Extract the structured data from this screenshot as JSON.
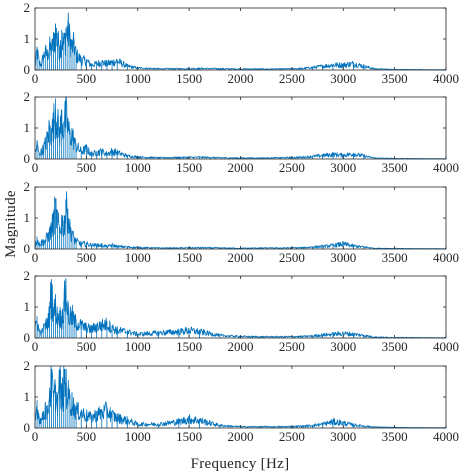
{
  "figure": {
    "xlabel": "Frequency [Hz]",
    "ylabel": "Magnitude"
  },
  "colors": {
    "series": "#0072BD",
    "axes": "#262626",
    "background": "#ffffff"
  },
  "chart_data": [
    {
      "type": "line",
      "xlim": [
        0,
        4000
      ],
      "ylim": [
        0,
        2
      ],
      "xticks": [
        0,
        500,
        1000,
        1500,
        2000,
        2500,
        3000,
        3500,
        4000
      ],
      "yticks": [
        0,
        1,
        2
      ],
      "grid": false,
      "x": [
        0,
        20,
        40,
        60,
        80,
        100,
        120,
        140,
        160,
        180,
        200,
        220,
        240,
        260,
        280,
        300,
        320,
        340,
        360,
        380,
        400,
        450,
        500,
        550,
        600,
        650,
        700,
        750,
        800,
        900,
        1000,
        1200,
        1400,
        1600,
        1800,
        2000,
        2200,
        2400,
        2600,
        2700,
        2800,
        2900,
        3000,
        3100,
        3200,
        3300,
        3500,
        4000
      ],
      "y": [
        0.1,
        0.75,
        0.3,
        0.2,
        0.5,
        0.7,
        0.6,
        0.9,
        0.8,
        1.1,
        1.5,
        1.2,
        0.8,
        1.3,
        1.0,
        1.35,
        1.6,
        1.2,
        0.9,
        1.0,
        0.6,
        0.4,
        0.35,
        0.2,
        0.25,
        0.3,
        0.25,
        0.3,
        0.35,
        0.15,
        0.08,
        0.05,
        0.05,
        0.06,
        0.05,
        0.04,
        0.04,
        0.04,
        0.06,
        0.1,
        0.15,
        0.2,
        0.2,
        0.25,
        0.15,
        0.05,
        0.02,
        0.01
      ]
    },
    {
      "type": "line",
      "xlim": [
        0,
        4000
      ],
      "ylim": [
        0,
        2
      ],
      "xticks": [
        0,
        500,
        1000,
        1500,
        2000,
        2500,
        3000,
        3500,
        4000
      ],
      "yticks": [
        0,
        1,
        2
      ],
      "grid": false,
      "x": [
        0,
        20,
        40,
        60,
        80,
        100,
        120,
        140,
        160,
        180,
        200,
        220,
        240,
        260,
        280,
        300,
        320,
        340,
        360,
        380,
        400,
        450,
        500,
        550,
        600,
        650,
        700,
        750,
        800,
        900,
        1000,
        1200,
        1400,
        1600,
        1800,
        2000,
        2200,
        2400,
        2600,
        2700,
        2800,
        2900,
        3000,
        3100,
        3200,
        3300,
        3500,
        4000
      ],
      "y": [
        0.2,
        0.55,
        0.2,
        0.3,
        0.4,
        0.6,
        0.8,
        1.2,
        1.0,
        1.4,
        1.95,
        1.4,
        1.0,
        1.6,
        1.2,
        1.8,
        1.3,
        0.9,
        1.0,
        0.7,
        0.5,
        0.3,
        0.4,
        0.2,
        0.25,
        0.3,
        0.2,
        0.3,
        0.25,
        0.12,
        0.08,
        0.05,
        0.06,
        0.07,
        0.05,
        0.04,
        0.04,
        0.05,
        0.07,
        0.1,
        0.14,
        0.18,
        0.15,
        0.2,
        0.12,
        0.04,
        0.02,
        0.01
      ]
    },
    {
      "type": "line",
      "xlim": [
        0,
        4000
      ],
      "ylim": [
        0,
        2
      ],
      "xticks": [
        0,
        500,
        1000,
        1500,
        2000,
        2500,
        3000,
        3500,
        4000
      ],
      "yticks": [
        0,
        1,
        2
      ],
      "grid": false,
      "x": [
        0,
        20,
        40,
        60,
        80,
        100,
        120,
        140,
        160,
        180,
        200,
        220,
        240,
        260,
        280,
        300,
        320,
        340,
        360,
        380,
        400,
        450,
        500,
        550,
        600,
        650,
        700,
        750,
        800,
        900,
        1000,
        1200,
        1400,
        1600,
        1800,
        2000,
        2200,
        2400,
        2600,
        2700,
        2800,
        2900,
        3000,
        3100,
        3200,
        3300,
        3500,
        4000
      ],
      "y": [
        0.1,
        0.4,
        0.2,
        0.25,
        0.3,
        0.3,
        0.5,
        0.6,
        0.8,
        1.1,
        1.55,
        1.1,
        0.7,
        1.1,
        0.9,
        1.6,
        1.3,
        0.8,
        0.6,
        0.4,
        0.3,
        0.2,
        0.2,
        0.15,
        0.15,
        0.15,
        0.1,
        0.15,
        0.1,
        0.08,
        0.06,
        0.04,
        0.04,
        0.05,
        0.04,
        0.03,
        0.04,
        0.04,
        0.05,
        0.08,
        0.1,
        0.14,
        0.2,
        0.12,
        0.08,
        0.03,
        0.02,
        0.01
      ]
    },
    {
      "type": "line",
      "xlim": [
        0,
        4000
      ],
      "ylim": [
        0,
        2
      ],
      "xticks": [
        0,
        500,
        1000,
        1500,
        2000,
        2500,
        3000,
        3500,
        4000
      ],
      "yticks": [
        0,
        1,
        2
      ],
      "grid": false,
      "x": [
        0,
        20,
        40,
        60,
        80,
        100,
        120,
        140,
        160,
        180,
        200,
        220,
        240,
        260,
        280,
        300,
        320,
        340,
        360,
        380,
        400,
        450,
        500,
        550,
        600,
        650,
        700,
        750,
        800,
        900,
        1000,
        1200,
        1400,
        1500,
        1600,
        1800,
        2000,
        2200,
        2400,
        2600,
        2700,
        2800,
        2900,
        3000,
        3100,
        3200,
        3300,
        3500,
        4000
      ],
      "y": [
        0.3,
        0.7,
        0.3,
        0.2,
        0.35,
        0.5,
        0.6,
        0.9,
        1.9,
        1.0,
        1.2,
        0.8,
        0.9,
        0.7,
        1.2,
        1.9,
        1.1,
        0.8,
        0.9,
        0.7,
        0.6,
        0.5,
        0.4,
        0.35,
        0.45,
        0.5,
        0.55,
        0.4,
        0.3,
        0.25,
        0.15,
        0.2,
        0.25,
        0.3,
        0.25,
        0.1,
        0.06,
        0.05,
        0.05,
        0.06,
        0.08,
        0.12,
        0.15,
        0.18,
        0.15,
        0.1,
        0.04,
        0.02,
        0.01
      ]
    },
    {
      "type": "line",
      "xlim": [
        0,
        4000
      ],
      "ylim": [
        0,
        2
      ],
      "xticks": [
        0,
        500,
        1000,
        1500,
        2000,
        2500,
        3000,
        3500,
        4000
      ],
      "yticks": [
        0,
        1,
        2
      ],
      "grid": false,
      "x": [
        0,
        20,
        40,
        60,
        80,
        100,
        120,
        140,
        160,
        180,
        200,
        220,
        240,
        260,
        280,
        300,
        320,
        340,
        360,
        380,
        400,
        450,
        500,
        550,
        600,
        650,
        700,
        750,
        800,
        900,
        1000,
        1200,
        1400,
        1500,
        1600,
        1800,
        2000,
        2200,
        2400,
        2600,
        2700,
        2800,
        2900,
        3000,
        3100,
        3200,
        3300,
        3500,
        4000
      ],
      "y": [
        0.2,
        0.9,
        0.4,
        0.3,
        0.5,
        0.8,
        0.6,
        1.3,
        1.9,
        1.1,
        1.4,
        1.0,
        1.8,
        1.2,
        1.6,
        1.9,
        1.3,
        1.1,
        1.0,
        0.8,
        0.7,
        0.6,
        0.5,
        0.4,
        0.55,
        0.6,
        0.7,
        0.5,
        0.4,
        0.3,
        0.15,
        0.15,
        0.25,
        0.35,
        0.3,
        0.1,
        0.05,
        0.05,
        0.05,
        0.07,
        0.1,
        0.15,
        0.25,
        0.2,
        0.12,
        0.08,
        0.04,
        0.02,
        0.01
      ]
    }
  ]
}
